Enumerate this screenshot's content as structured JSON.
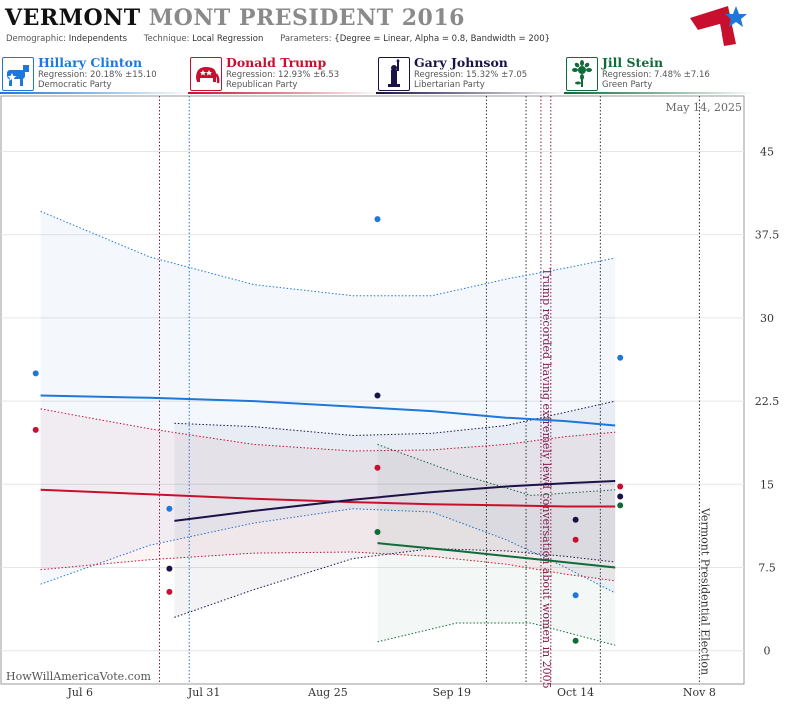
{
  "header": {
    "title_state": "VERMONT",
    "title_rest": "MONT PRESIDENT 2016",
    "demographic_label": "Demographic:",
    "demographic_value": "Independents",
    "technique_label": "Technique:",
    "technique_value": "Local Regression",
    "parameters_label": "Parameters:",
    "parameters_value": "{Degree = Linear, Alpha = 0.8, Bandwidth = 200}"
  },
  "candidates": [
    {
      "name": "Hillary Clinton",
      "regression": "Regression: 20.18% ±15.10",
      "party": "Democratic Party",
      "color": "#1f77d9",
      "icon": "donkey-icon"
    },
    {
      "name": "Donald Trump",
      "regression": "Regression: 12.93% ±6.53",
      "party": "Republican Party",
      "color": "#c8102e",
      "icon": "elephant-icon"
    },
    {
      "name": "Gary Johnson",
      "regression": "Regression: 15.32% ±7.05",
      "party": "Libertarian Party",
      "color": "#1b1247",
      "icon": "liberty-torch-icon"
    },
    {
      "name": "Jill Stein",
      "regression": "Regression: 7.48% ±7.16",
      "party": "Green Party",
      "color": "#0f6b3a",
      "icon": "sunflower-icon"
    }
  ],
  "watermark": "HowWillAmericaVote.com",
  "date_label": "May 14, 2025",
  "chart_data": {
    "type": "line",
    "x_ticks": [
      "Jul 6",
      "Jul 31",
      "Aug 25",
      "Sep 19",
      "Oct 14",
      "Nov 8"
    ],
    "y_ticks": [
      "0",
      "7.5",
      "15",
      "22.5",
      "30",
      "37.5",
      "45"
    ],
    "ylim": [
      -3,
      50
    ],
    "xlim": [
      "2016-06-20",
      "2016-11-17"
    ],
    "grid": true,
    "series": [
      {
        "name": "Hillary Clinton",
        "color": "#1f77d9",
        "fit": [
          [
            "2016-06-28",
            23.0
          ],
          [
            "2016-07-20",
            22.8
          ],
          [
            "2016-08-10",
            22.5
          ],
          [
            "2016-08-30",
            22.0
          ],
          [
            "2016-09-15",
            21.6
          ],
          [
            "2016-09-30",
            21.0
          ],
          [
            "2016-10-12",
            20.7
          ],
          [
            "2016-10-22",
            20.3
          ]
        ],
        "upper": [
          [
            "2016-06-28",
            39.6
          ],
          [
            "2016-07-20",
            35.5
          ],
          [
            "2016-08-10",
            33.0
          ],
          [
            "2016-08-30",
            32.0
          ],
          [
            "2016-09-15",
            32.0
          ],
          [
            "2016-09-30",
            33.5
          ],
          [
            "2016-10-12",
            34.5
          ],
          [
            "2016-10-22",
            35.4
          ]
        ],
        "lower": [
          [
            "2016-06-28",
            6.0
          ],
          [
            "2016-07-20",
            9.5
          ],
          [
            "2016-08-10",
            11.5
          ],
          [
            "2016-08-30",
            12.8
          ],
          [
            "2016-09-15",
            12.5
          ],
          [
            "2016-09-30",
            10.0
          ],
          [
            "2016-10-12",
            7.5
          ],
          [
            "2016-10-22",
            5.2
          ]
        ],
        "points": [
          [
            "2016-06-27",
            25.0
          ],
          [
            "2016-07-24",
            12.8
          ],
          [
            "2016-09-04",
            38.9
          ],
          [
            "2016-10-14",
            5.0
          ],
          [
            "2016-10-23",
            26.4
          ]
        ]
      },
      {
        "name": "Donald Trump",
        "color": "#c8102e",
        "fit": [
          [
            "2016-06-28",
            14.5
          ],
          [
            "2016-07-20",
            14.1
          ],
          [
            "2016-08-10",
            13.7
          ],
          [
            "2016-08-30",
            13.4
          ],
          [
            "2016-09-15",
            13.2
          ],
          [
            "2016-09-30",
            13.1
          ],
          [
            "2016-10-12",
            13.0
          ],
          [
            "2016-10-22",
            13.0
          ]
        ],
        "upper": [
          [
            "2016-06-28",
            21.8
          ],
          [
            "2016-07-20",
            20.0
          ],
          [
            "2016-08-10",
            18.6
          ],
          [
            "2016-08-30",
            18.0
          ],
          [
            "2016-09-15",
            18.1
          ],
          [
            "2016-09-30",
            18.6
          ],
          [
            "2016-10-12",
            19.3
          ],
          [
            "2016-10-22",
            19.7
          ]
        ],
        "lower": [
          [
            "2016-06-28",
            7.3
          ],
          [
            "2016-07-20",
            8.2
          ],
          [
            "2016-08-10",
            8.8
          ],
          [
            "2016-08-30",
            8.9
          ],
          [
            "2016-09-15",
            8.5
          ],
          [
            "2016-09-30",
            7.8
          ],
          [
            "2016-10-12",
            6.9
          ],
          [
            "2016-10-22",
            6.3
          ]
        ],
        "points": [
          [
            "2016-06-27",
            19.9
          ],
          [
            "2016-07-24",
            5.3
          ],
          [
            "2016-09-04",
            16.5
          ],
          [
            "2016-10-14",
            10.0
          ],
          [
            "2016-10-23",
            14.8
          ]
        ]
      },
      {
        "name": "Gary Johnson",
        "color": "#1b1247",
        "fit": [
          [
            "2016-07-25",
            11.7
          ],
          [
            "2016-08-10",
            12.6
          ],
          [
            "2016-08-30",
            13.6
          ],
          [
            "2016-09-15",
            14.3
          ],
          [
            "2016-09-30",
            14.8
          ],
          [
            "2016-10-12",
            15.1
          ],
          [
            "2016-10-22",
            15.3
          ]
        ],
        "upper": [
          [
            "2016-07-25",
            20.5
          ],
          [
            "2016-08-10",
            20.2
          ],
          [
            "2016-08-30",
            19.4
          ],
          [
            "2016-09-15",
            19.6
          ],
          [
            "2016-09-30",
            20.3
          ],
          [
            "2016-10-12",
            21.5
          ],
          [
            "2016-10-22",
            22.5
          ]
        ],
        "lower": [
          [
            "2016-07-25",
            3.0
          ],
          [
            "2016-08-10",
            5.5
          ],
          [
            "2016-08-30",
            8.3
          ],
          [
            "2016-09-15",
            9.2
          ],
          [
            "2016-09-30",
            9.0
          ],
          [
            "2016-10-12",
            8.5
          ],
          [
            "2016-10-22",
            8.0
          ]
        ],
        "points": [
          [
            "2016-07-24",
            7.4
          ],
          [
            "2016-09-04",
            23.0
          ],
          [
            "2016-10-14",
            11.8
          ],
          [
            "2016-10-23",
            13.9
          ]
        ]
      },
      {
        "name": "Jill Stein",
        "color": "#0f6b3a",
        "fit": [
          [
            "2016-09-04",
            9.7
          ],
          [
            "2016-09-20",
            9.0
          ],
          [
            "2016-10-05",
            8.3
          ],
          [
            "2016-10-22",
            7.5
          ]
        ],
        "upper": [
          [
            "2016-09-04",
            18.6
          ],
          [
            "2016-09-20",
            16.0
          ],
          [
            "2016-10-05",
            14.0
          ],
          [
            "2016-10-22",
            14.5
          ]
        ],
        "lower": [
          [
            "2016-09-04",
            0.8
          ],
          [
            "2016-09-20",
            2.5
          ],
          [
            "2016-10-05",
            2.5
          ],
          [
            "2016-10-22",
            0.5
          ]
        ],
        "points": [
          [
            "2016-09-04",
            10.7
          ],
          [
            "2016-10-14",
            0.9
          ],
          [
            "2016-10-23",
            13.1
          ]
        ]
      }
    ],
    "events": [
      {
        "date": "2016-10-07",
        "label": "Trump recorded having extremely lewd conversation about women in 2005",
        "color": "#8b1a4a"
      },
      {
        "date": "2016-11-08",
        "label": "Vermont Presidential Election",
        "color": "#333333"
      }
    ],
    "debate_lines": [
      {
        "date": "2016-07-22",
        "color": "#8b1a4a"
      },
      {
        "date": "2016-07-28",
        "color": "#1f77d9"
      },
      {
        "date": "2016-09-26",
        "color": "#333333"
      },
      {
        "date": "2016-10-04",
        "color": "#333333"
      },
      {
        "date": "2016-10-09",
        "color": "#8b1a4a"
      },
      {
        "date": "2016-10-19",
        "color": "#333333"
      }
    ]
  }
}
